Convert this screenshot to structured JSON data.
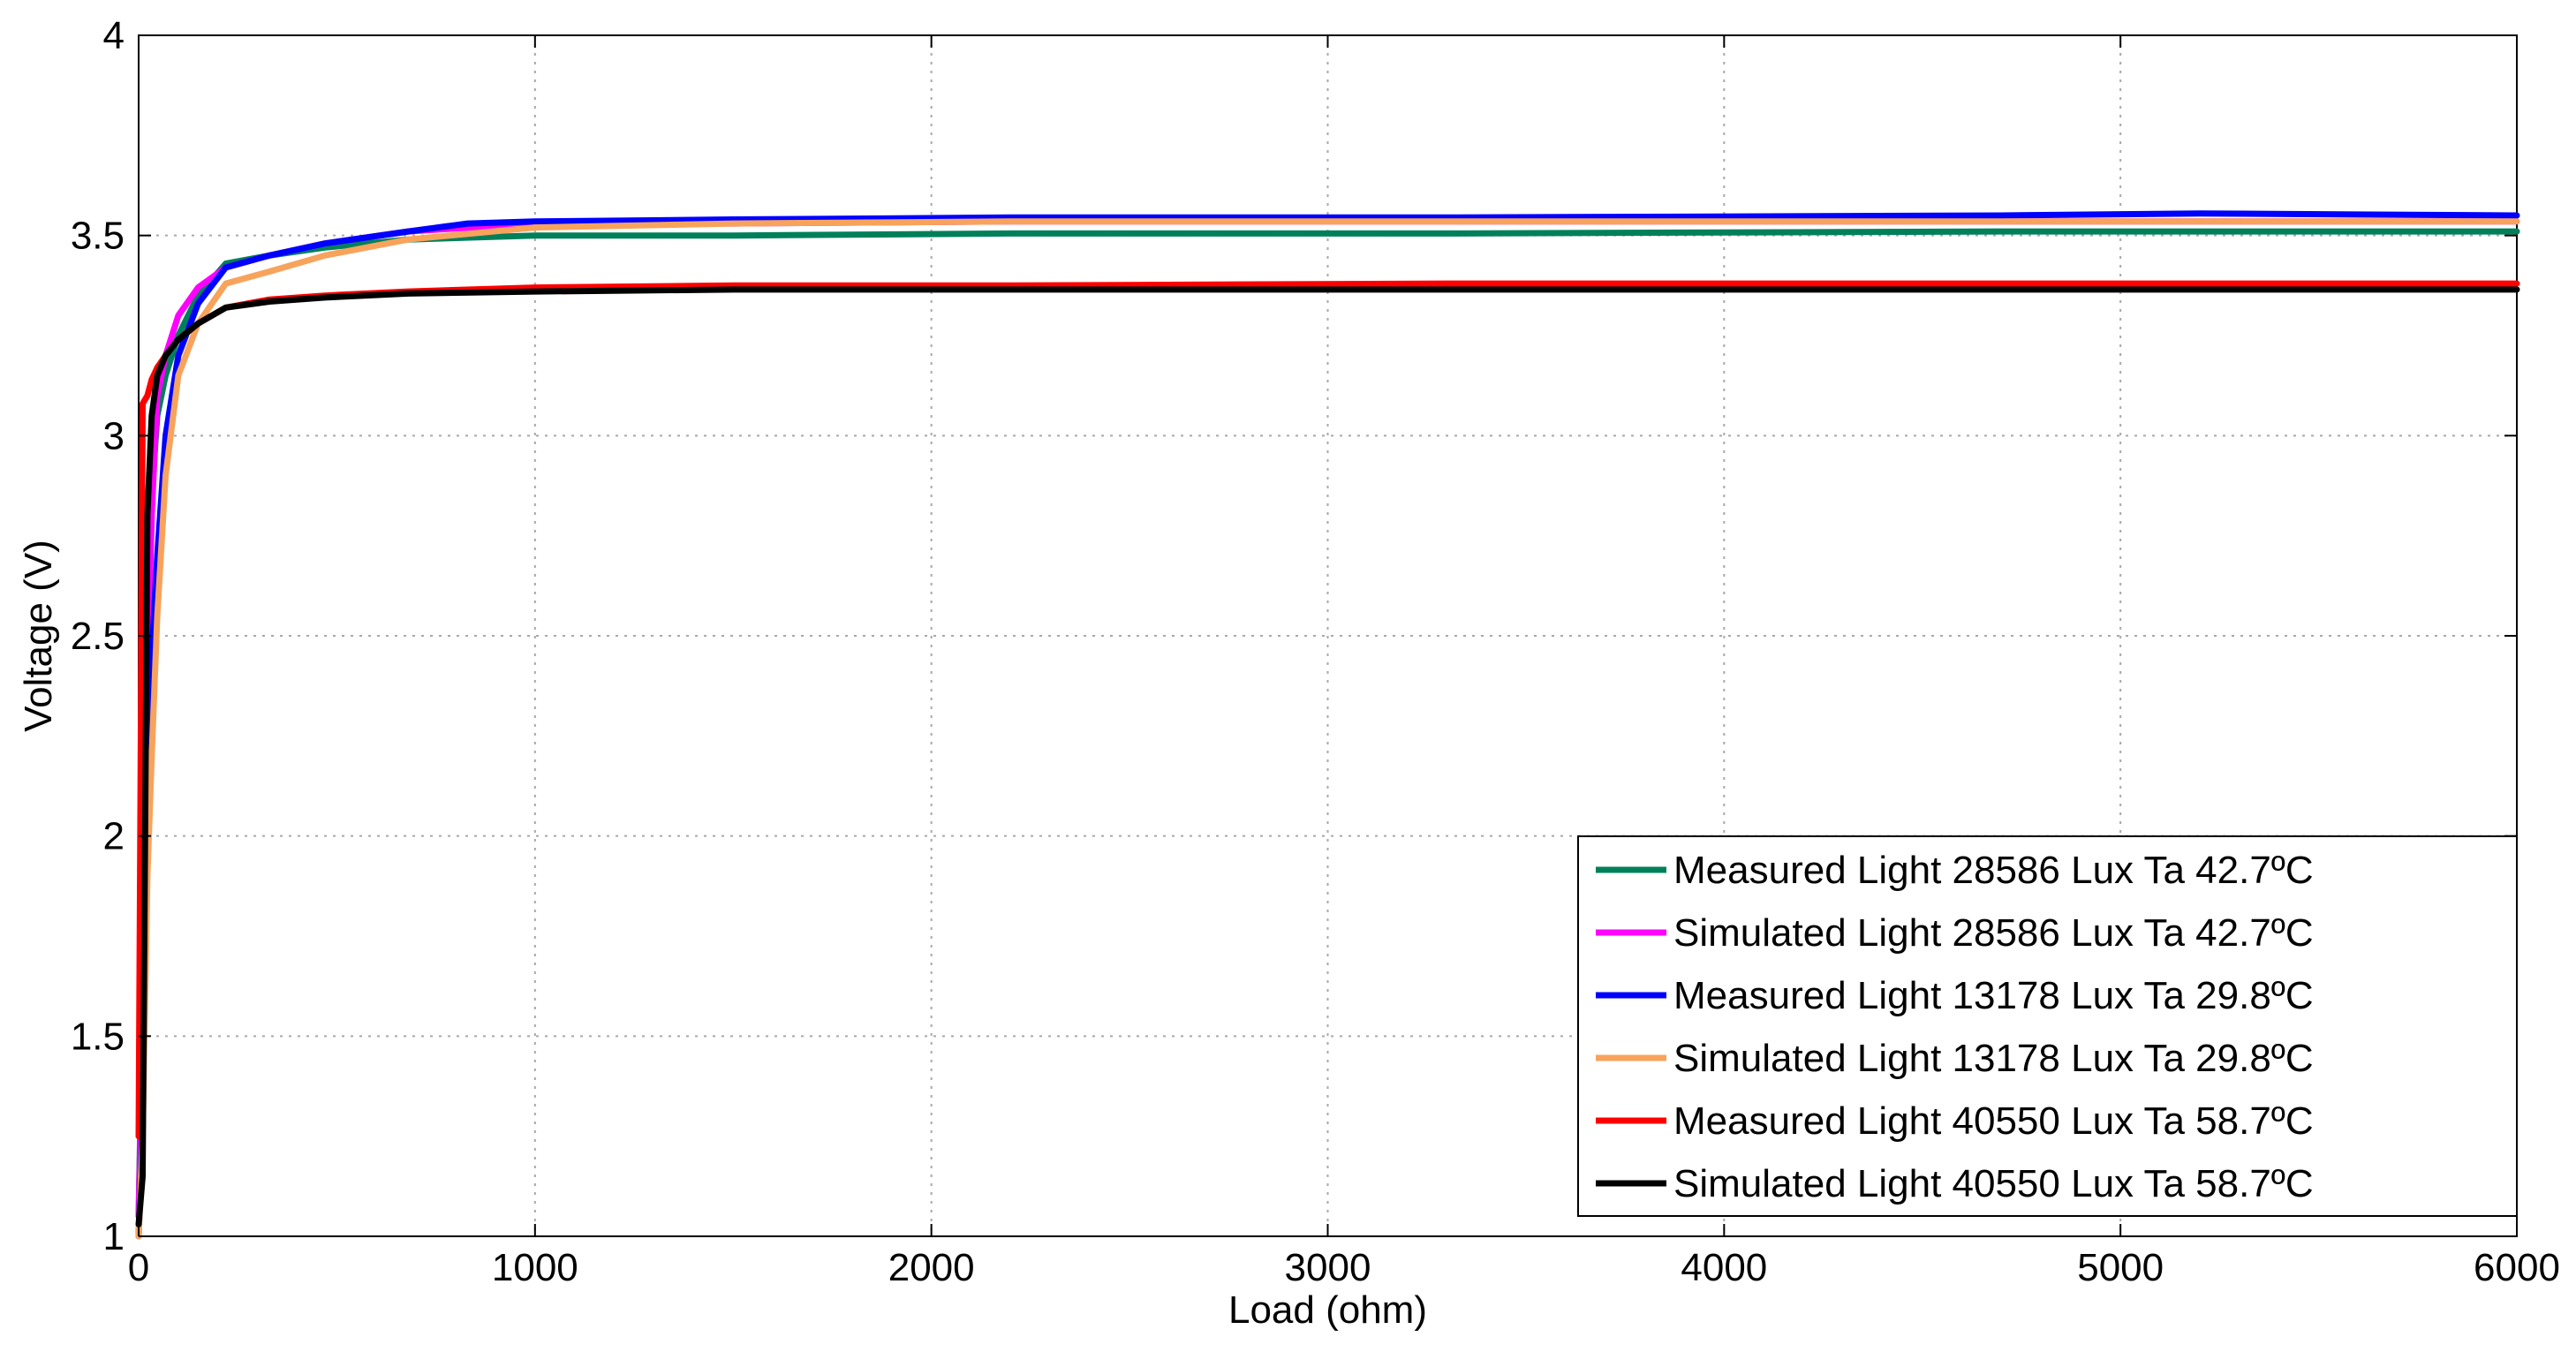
{
  "chart_data": {
    "type": "line",
    "title": "",
    "xlabel": "Load (ohm)",
    "ylabel": "Voltage (V)",
    "xlim": [
      0,
      6000
    ],
    "ylim": [
      1,
      4
    ],
    "xticks": [
      0,
      1000,
      2000,
      3000,
      4000,
      5000,
      6000
    ],
    "yticks": [
      1,
      1.5,
      2,
      2.5,
      3,
      3.5,
      4
    ],
    "xtick_labels": [
      "0",
      "1000",
      "2000",
      "3000",
      "4000",
      "5000",
      "6000"
    ],
    "ytick_labels": [
      "1",
      "1.5",
      "2",
      "2.5",
      "3",
      "3.5",
      "4"
    ],
    "grid": true,
    "legend_position": "bottom-right",
    "series": [
      {
        "name": "Measured Light 28586 Lux Ta 42.7ºC",
        "color": "#00805a",
        "x": [
          0,
          10,
          22,
          33,
          47,
          68,
          100,
          150,
          220,
          330,
          470,
          680,
          1000,
          1500,
          2200,
          3300,
          4700,
          6000
        ],
        "y": [
          1.05,
          1.6,
          2.5,
          2.85,
          3.05,
          3.15,
          3.25,
          3.35,
          3.43,
          3.45,
          3.47,
          3.49,
          3.5,
          3.5,
          3.505,
          3.505,
          3.51,
          3.51
        ]
      },
      {
        "name": "Simulated Light 28586 Lux Ta 42.7ºC",
        "color": "#ff00ff",
        "x": [
          0,
          10,
          22,
          33,
          47,
          68,
          100,
          150,
          220,
          330,
          470,
          680,
          1000,
          1500,
          2200,
          3300,
          4700,
          6000
        ],
        "y": [
          1.05,
          1.5,
          2.4,
          2.8,
          3.1,
          3.2,
          3.3,
          3.37,
          3.42,
          3.45,
          3.48,
          3.51,
          3.53,
          3.53,
          3.535,
          3.535,
          3.535,
          3.535
        ]
      },
      {
        "name": "Measured Light 13178 Lux Ta 29.8ºC",
        "color": "#0000ff",
        "x": [
          0,
          10,
          22,
          33,
          47,
          68,
          100,
          150,
          220,
          330,
          470,
          680,
          830,
          1000,
          1500,
          2200,
          3300,
          4700,
          5200,
          6000
        ],
        "y": [
          1.0,
          1.3,
          2.0,
          2.45,
          2.7,
          3.0,
          3.2,
          3.33,
          3.42,
          3.45,
          3.48,
          3.51,
          3.53,
          3.535,
          3.54,
          3.545,
          3.545,
          3.55,
          3.555,
          3.55
        ]
      },
      {
        "name": "Simulated Light 13178 Lux Ta 29.8ºC",
        "color": "#f7a35c",
        "x": [
          0,
          10,
          22,
          33,
          47,
          68,
          100,
          150,
          220,
          330,
          470,
          680,
          1000,
          1500,
          2200,
          3300,
          4700,
          6000
        ],
        "y": [
          1.0,
          1.25,
          1.9,
          2.2,
          2.55,
          2.9,
          3.15,
          3.28,
          3.38,
          3.41,
          3.45,
          3.49,
          3.52,
          3.53,
          3.535,
          3.535,
          3.535,
          3.535
        ]
      },
      {
        "name": "Measured Light 40550 Lux Ta 58.7ºC",
        "color": "#ff0000",
        "x": [
          0,
          10,
          22,
          33,
          47,
          68,
          100,
          150,
          220,
          330,
          470,
          680,
          1000,
          1500,
          2200,
          3300,
          4700,
          6000
        ],
        "y": [
          1.25,
          3.08,
          3.1,
          3.14,
          3.17,
          3.2,
          3.24,
          3.28,
          3.32,
          3.34,
          3.35,
          3.36,
          3.37,
          3.375,
          3.375,
          3.38,
          3.38,
          3.38
        ]
      },
      {
        "name": "Simulated Light 40550 Lux Ta 58.7ºC",
        "color": "#000000",
        "x": [
          0,
          10,
          22,
          33,
          47,
          68,
          100,
          150,
          220,
          330,
          470,
          680,
          1000,
          1500,
          2200,
          3300,
          4700,
          6000
        ],
        "y": [
          1.03,
          1.15,
          2.8,
          3.05,
          3.15,
          3.2,
          3.24,
          3.28,
          3.32,
          3.335,
          3.345,
          3.355,
          3.36,
          3.365,
          3.365,
          3.365,
          3.365,
          3.365
        ]
      }
    ]
  }
}
